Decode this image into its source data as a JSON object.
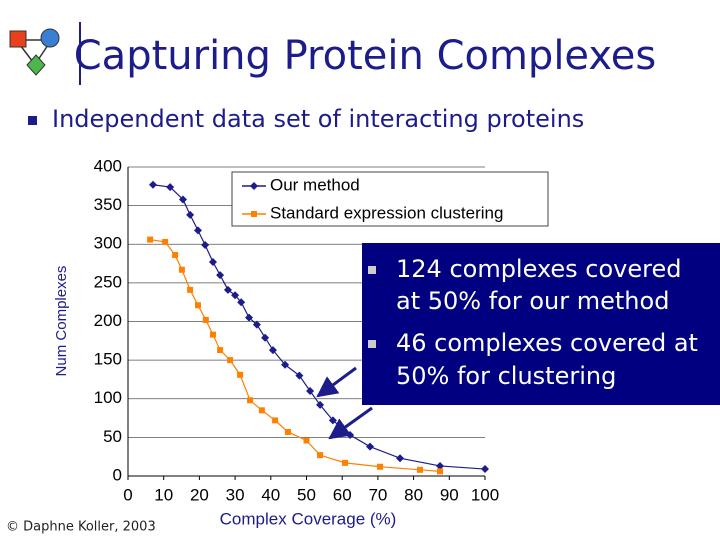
{
  "slide": {
    "title": "Capturing Protein Complexes",
    "bullet": "Independent data set of interacting proteins",
    "footer": "© Daphne Koller, 2003",
    "callout": [
      [
        "124 complexes covered",
        "at 50% for our method"
      ],
      [
        "46 complexes covered at",
        "50% for clustering"
      ]
    ]
  },
  "chart_data": {
    "type": "line",
    "x_label": "Complex Coverage (%)",
    "y_label": "Num Complexes",
    "xlim": [
      0,
      100
    ],
    "ylim": [
      0,
      400
    ],
    "xticks": [
      0,
      10,
      20,
      30,
      40,
      50,
      60,
      70,
      80,
      90,
      100
    ],
    "yticks": [
      0,
      50,
      100,
      150,
      200,
      250,
      300,
      350,
      400
    ],
    "grid": true,
    "legend": "upper right",
    "series": [
      {
        "name": "Our method",
        "color": "#1c1c8a",
        "marker": "diamond",
        "x": [
          7,
          11.8,
          15.4,
          17.4,
          19.6,
          21.6,
          23.8,
          25.8,
          28,
          30,
          31.7,
          33.9,
          36.1,
          38.4,
          40.6,
          44,
          48,
          51,
          53.8,
          57.4,
          62.2,
          67.8,
          76.2,
          87.4,
          100
        ],
        "values": [
          377,
          374,
          358,
          338,
          318,
          299,
          277,
          260,
          241,
          234,
          225,
          205,
          196,
          179,
          163,
          144,
          130,
          110,
          92,
          72,
          53,
          38,
          23,
          13,
          9
        ]
      },
      {
        "name": "Standard expression clustering",
        "color": "#ff7f00",
        "marker": "square",
        "x": [
          6.2,
          10.4,
          13.2,
          15.1,
          17.4,
          19.6,
          21.8,
          23.8,
          25.8,
          28.6,
          31.4,
          34.2,
          37.5,
          41.2,
          44.8,
          50,
          53.8,
          60.8,
          70.6,
          81.8,
          87.4
        ],
        "values": [
          306,
          303,
          286,
          267,
          241,
          221,
          202,
          183,
          163,
          150,
          131,
          98,
          85,
          72,
          57,
          46,
          27,
          17,
          12,
          8,
          6
        ]
      }
    ]
  }
}
